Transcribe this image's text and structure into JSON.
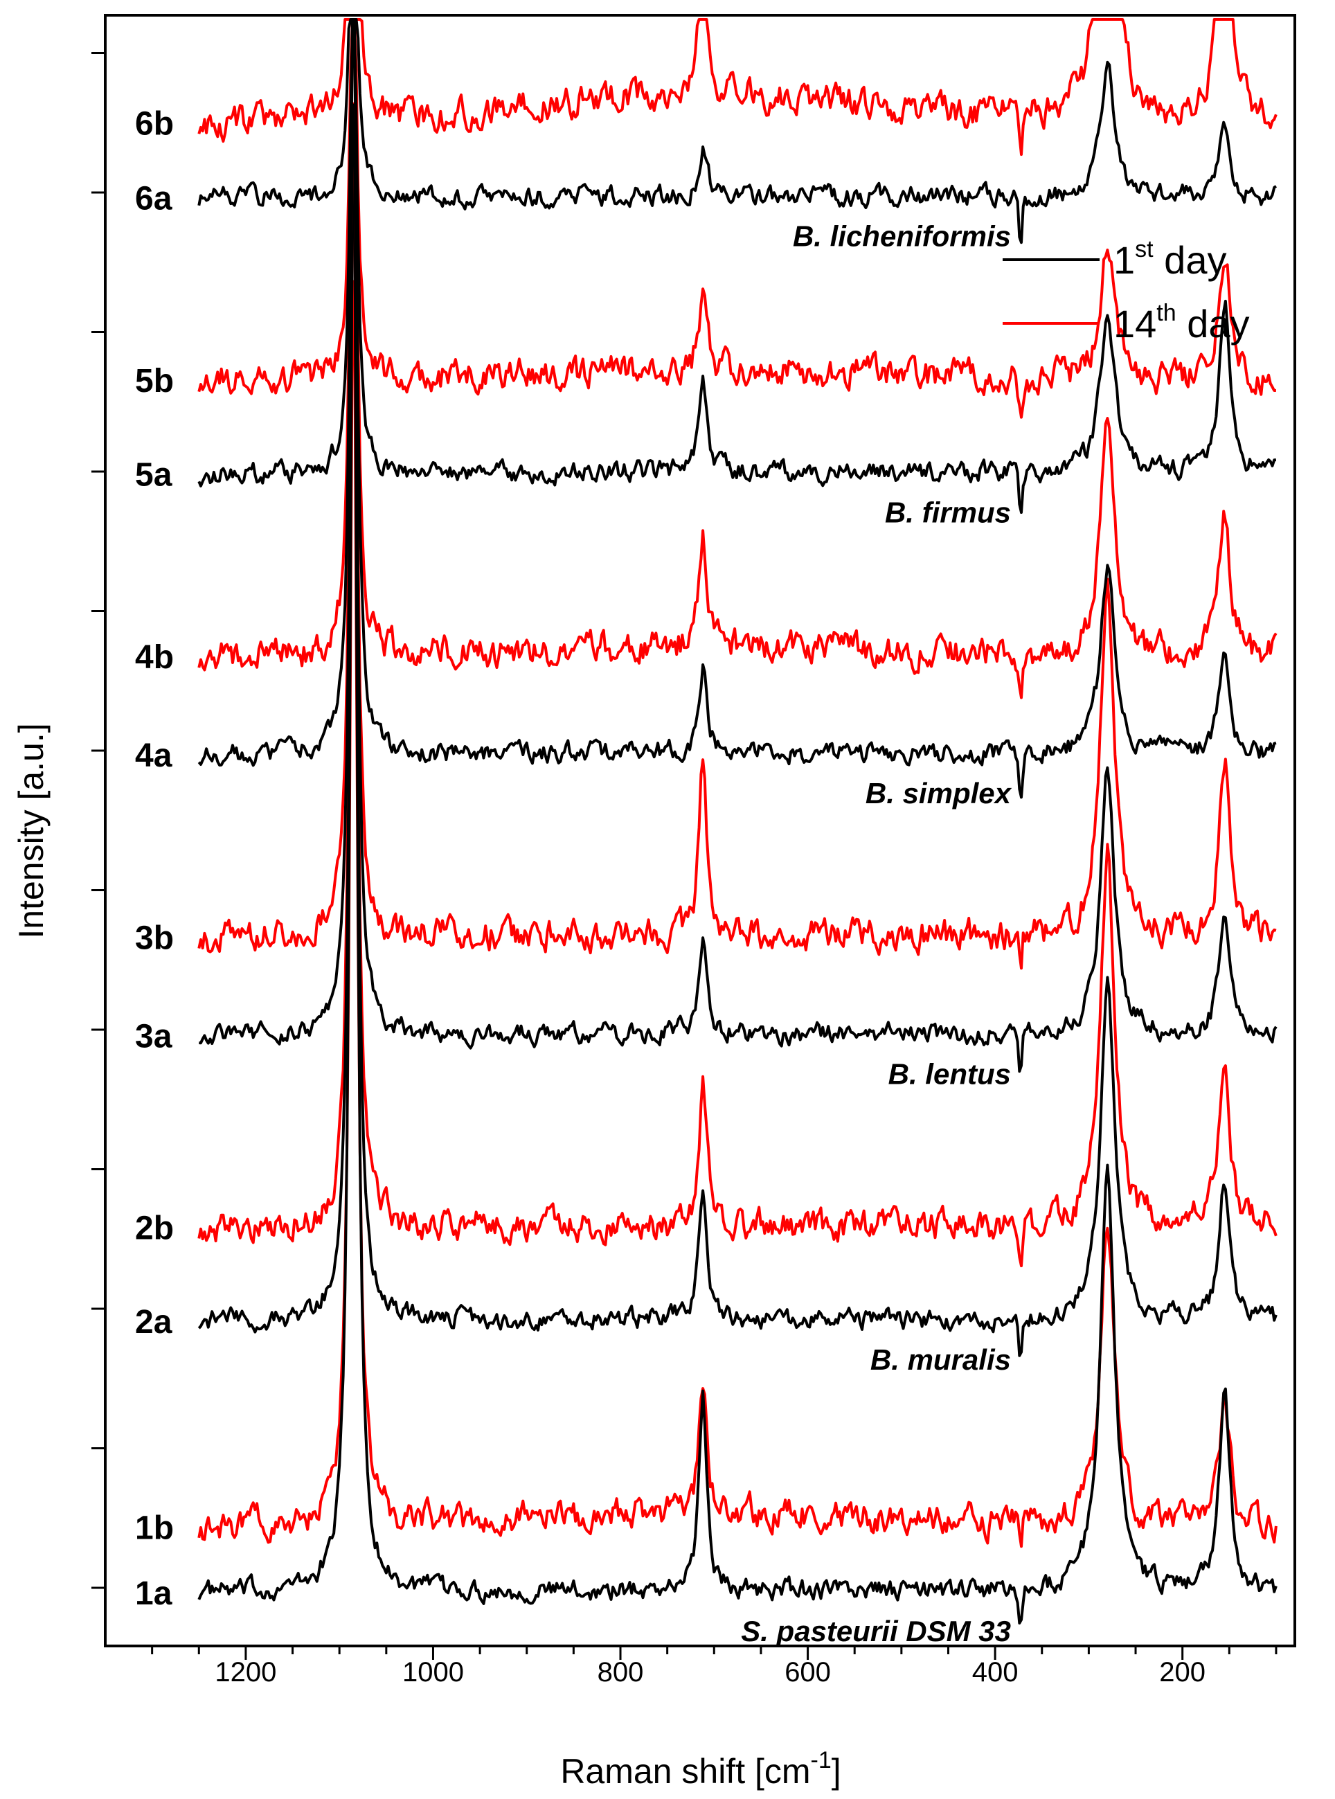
{
  "chart_data": {
    "type": "line",
    "title": "",
    "xlabel": "Raman shift [cm",
    "xlabel_sup": "-1",
    "xlabel_end": "]",
    "ylabel": "Intensity [a.u.]",
    "xlim": [
      1350,
      80
    ],
    "x_ticks": [
      1200,
      1000,
      800,
      600,
      400,
      200
    ],
    "x_range_data": [
      1250,
      100
    ],
    "legend": {
      "position": "top-right",
      "entries": [
        {
          "pre": "1",
          "sup": "st",
          "post": " day",
          "color": "#000000"
        },
        {
          "pre": "14",
          "sup": "th",
          "post": " day",
          "color": "#ff0000"
        }
      ]
    },
    "common_peaks_cm1": [
      1085,
      712,
      373,
      280,
      155
    ],
    "colors": {
      "day1": "#000000",
      "day14": "#ff0000"
    },
    "groups": [
      {
        "species": "S. pasteurii DSM 33",
        "a_label": "1a",
        "b_label": "1b",
        "a_baseline": 0,
        "b_baseline": 1.4,
        "b_bump": 0.3,
        "a_peaks": [
          {
            "x": 1085,
            "h": 32.5
          },
          {
            "x": 712,
            "h": 4.2
          },
          {
            "x": 280,
            "h": 9.2
          },
          {
            "x": 155,
            "h": 4.2
          },
          {
            "x": 373,
            "h": -1.0
          }
        ],
        "b_peaks": [
          {
            "x": 1085,
            "h": 28
          },
          {
            "x": 712,
            "h": 2.9
          },
          {
            "x": 280,
            "h": 6.6
          },
          {
            "x": 155,
            "h": 2.6
          },
          {
            "x": 373,
            "h": -0.8
          }
        ]
      },
      {
        "species": "B. muralis",
        "a_label": "2a",
        "b_label": "2b",
        "a_baseline": 5.8,
        "b_baseline": 7.8,
        "b_bump": 0.05,
        "a_peaks": [
          {
            "x": 1085,
            "h": 26
          },
          {
            "x": 712,
            "h": 2.9
          },
          {
            "x": 280,
            "h": 7.2
          },
          {
            "x": 155,
            "h": 3.0
          },
          {
            "x": 373,
            "h": -1.2
          }
        ],
        "b_peaks": [
          {
            "x": 1085,
            "h": 24
          },
          {
            "x": 712,
            "h": 3.1
          },
          {
            "x": 280,
            "h": 8.0
          },
          {
            "x": 155,
            "h": 3.4
          },
          {
            "x": 373,
            "h": -1.1
          }
        ]
      },
      {
        "species": "B. lentus",
        "a_label": "3a",
        "b_label": "3b",
        "a_baseline": 11.9,
        "b_baseline": 14.0,
        "b_bump": 0.05,
        "a_peaks": [
          {
            "x": 1085,
            "h": 21
          },
          {
            "x": 712,
            "h": 2.1
          },
          {
            "x": 280,
            "h": 5.7
          },
          {
            "x": 155,
            "h": 2.6
          },
          {
            "x": 373,
            "h": -1.2
          }
        ],
        "b_peaks": [
          {
            "x": 1085,
            "h": 19
          },
          {
            "x": 712,
            "h": 3.7
          },
          {
            "x": 280,
            "h": 7.5
          },
          {
            "x": 155,
            "h": 3.8
          },
          {
            "x": 373,
            "h": -1.0
          }
        ]
      },
      {
        "species": "B. simplex",
        "a_label": "4a",
        "b_label": "4b",
        "a_baseline": 17.9,
        "b_baseline": 20.0,
        "b_bump": 0.2,
        "a_peaks": [
          {
            "x": 1085,
            "h": 16.5
          },
          {
            "x": 712,
            "h": 1.8
          },
          {
            "x": 280,
            "h": 4.0
          },
          {
            "x": 155,
            "h": 2.0
          },
          {
            "x": 373,
            "h": -1.1
          }
        ],
        "b_peaks": [
          {
            "x": 1085,
            "h": 14.5
          },
          {
            "x": 712,
            "h": 2.3
          },
          {
            "x": 280,
            "h": 4.9
          },
          {
            "x": 155,
            "h": 3.2
          },
          {
            "x": 373,
            "h": -1.1
          }
        ]
      },
      {
        "species": "B. firmus",
        "a_label": "5a",
        "b_label": "5b",
        "a_baseline": 23.9,
        "b_baseline": 25.9,
        "b_bump": 0.2,
        "a_peaks": [
          {
            "x": 1085,
            "h": 11
          },
          {
            "x": 712,
            "h": 2.2
          },
          {
            "x": 280,
            "h": 3.5
          },
          {
            "x": 155,
            "h": 3.7
          },
          {
            "x": 373,
            "h": -1.1
          }
        ],
        "b_peaks": [
          {
            "x": 1085,
            "h": 9.8
          },
          {
            "x": 712,
            "h": 1.8
          },
          {
            "x": 280,
            "h": 3.0
          },
          {
            "x": 155,
            "h": 2.8
          },
          {
            "x": 373,
            "h": -0.9
          }
        ]
      },
      {
        "species": "B. licheniformis",
        "a_label": "6a",
        "b_label": "6b",
        "a_baseline": 29.8,
        "b_baseline": 31.4,
        "b_bump": 0.6,
        "a_peaks": [
          {
            "x": 1085,
            "h": 7.7
          },
          {
            "x": 712,
            "h": 1.1
          },
          {
            "x": 280,
            "h": 2.8
          },
          {
            "x": 155,
            "h": 1.6
          },
          {
            "x": 373,
            "h": -1.3
          }
        ],
        "b_peaks": [
          {
            "x": 1085,
            "h": 11.5
          },
          {
            "x": 712,
            "h": 2.9
          },
          {
            "x": 280,
            "h": 9.6
          },
          {
            "x": 155,
            "h": 6.6
          },
          {
            "x": 373,
            "h": -1.1
          }
        ]
      }
    ]
  }
}
